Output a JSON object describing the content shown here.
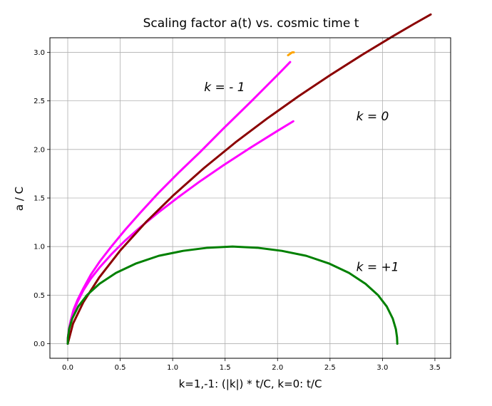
{
  "chart_data": {
    "type": "line",
    "title": "Scaling factor a(t) vs. cosmic time t",
    "xlabel": "k=1,-1: (|k|) * t/C,     k=0: t/C",
    "ylabel": "a / C",
    "xlim": [
      -0.17,
      3.65
    ],
    "ylim": [
      -0.15,
      3.15
    ],
    "xticks": [
      "0.0",
      "0.5",
      "1.0",
      "1.5",
      "2.0",
      "2.5",
      "3.0",
      "3.5"
    ],
    "yticks": [
      "0.0",
      "0.5",
      "1.0",
      "1.5",
      "2.0",
      "2.5",
      "3.0"
    ],
    "grid": true,
    "annotations": [
      {
        "text": "k = - 1",
        "x": 1.3,
        "y": 2.6
      },
      {
        "text": "k = 0",
        "x": 2.75,
        "y": 2.3
      },
      {
        "text": "k = +1",
        "x": 2.75,
        "y": 0.75
      }
    ],
    "series": [
      {
        "color": "#ff00ff",
        "x": [
          0.0,
          0.0004,
          0.0034,
          0.0117,
          0.0288,
          0.0551,
          0.0929,
          0.1488,
          0.2197,
          0.3074,
          0.4155,
          0.5451,
          0.6923,
          0.8626,
          1.0556,
          1.2584,
          1.4884,
          1.7444,
          2.0122,
          2.15
        ],
        "y": [
          0.0,
          0.03,
          0.08,
          0.15,
          0.24,
          0.33,
          0.43,
          0.55,
          0.67,
          0.79,
          0.92,
          1.06,
          1.2,
          1.35,
          1.51,
          1.67,
          1.84,
          2.02,
          2.2,
          2.29
        ]
      },
      {
        "color": "#ffa500",
        "x": [
          2.1,
          2.12,
          2.14,
          2.155
        ],
        "y": [
          2.97,
          2.985,
          3.0,
          3.0
        ]
      },
      {
        "color": "#ff00ff",
        "x": [
          0.0,
          0.0004,
          0.0034,
          0.0117,
          0.0288,
          0.0551,
          0.0929,
          0.1488,
          0.2197,
          0.3074,
          0.4155,
          0.5451,
          0.6923,
          0.8626,
          1.0556,
          1.2584,
          1.4884,
          1.7444,
          2.0122,
          2.12
        ],
        "y": [
          0.0,
          0.03,
          0.08,
          0.15,
          0.24,
          0.35,
          0.45,
          0.57,
          0.71,
          0.85,
          1.0,
          1.17,
          1.35,
          1.55,
          1.76,
          1.97,
          2.22,
          2.49,
          2.78,
          2.9
        ]
      },
      {
        "color": "#8b0000",
        "x": [
          0.0,
          0.05,
          0.15,
          0.3,
          0.5,
          0.75,
          1.0,
          1.3,
          1.6,
          1.9,
          2.2,
          2.5,
          2.8,
          3.1,
          3.3,
          3.46
        ],
        "y": [
          0.0,
          0.206,
          0.43,
          0.682,
          0.959,
          1.257,
          1.521,
          1.81,
          2.074,
          2.318,
          2.548,
          2.764,
          2.97,
          3.166,
          3.292,
          3.39
        ]
      },
      {
        "color": "#008000",
        "x": [
          0.0,
          0.002,
          0.013,
          0.043,
          0.1,
          0.183,
          0.303,
          0.46,
          0.653,
          0.868,
          1.1,
          1.333,
          1.571,
          1.808,
          2.041,
          2.273,
          2.488,
          2.681,
          2.838,
          2.958,
          3.041,
          3.098,
          3.128,
          3.139,
          3.1416
        ],
        "y": [
          0.0,
          0.065,
          0.149,
          0.259,
          0.383,
          0.5,
          0.617,
          0.729,
          0.827,
          0.905,
          0.956,
          0.988,
          1.0,
          0.988,
          0.956,
          0.905,
          0.827,
          0.729,
          0.617,
          0.5,
          0.383,
          0.259,
          0.149,
          0.065,
          0.0
        ]
      }
    ]
  }
}
